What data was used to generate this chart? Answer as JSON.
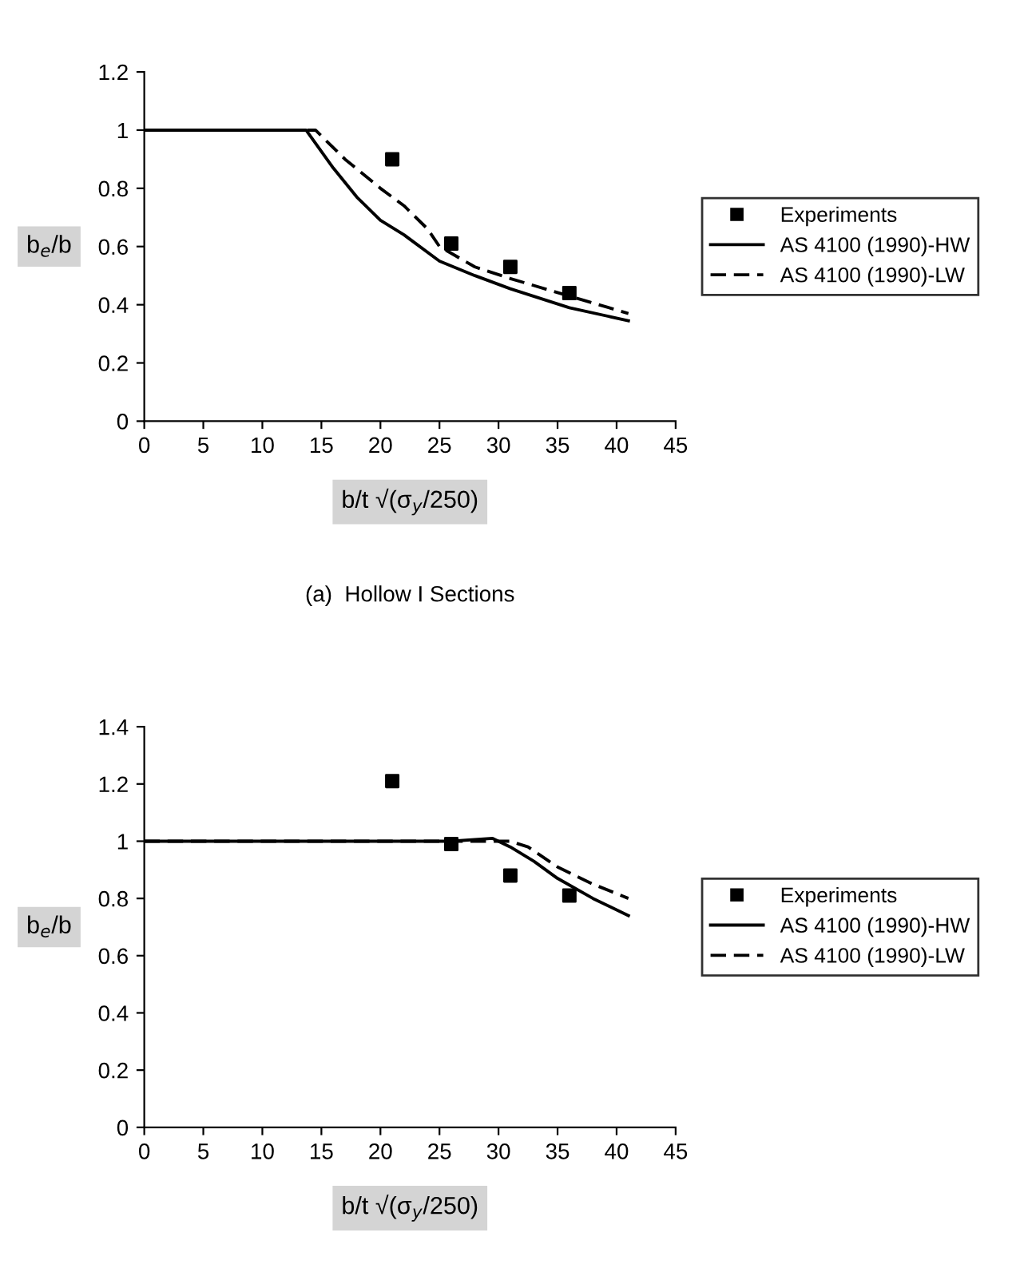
{
  "chart_data": [
    {
      "type": "line",
      "xlabel": "b/t √(σ$_{y}$/250)",
      "ylabel": "b$_{e}$/b",
      "annotations": [
        "(a)  Hollow I Sections"
      ],
      "xlim": [
        0,
        45
      ],
      "xticks": [
        0,
        5,
        10,
        15,
        20,
        25,
        30,
        35,
        40,
        45
      ],
      "ylim": [
        0,
        1.2
      ],
      "yticks": [
        0,
        0.2,
        0.4,
        0.6,
        0.8,
        1,
        1.2
      ],
      "grid": false,
      "legend": "right",
      "series": [
        {
          "name": "Experiments",
          "type": "scatter",
          "marker": "square",
          "color": "#000000",
          "x": [
            21,
            26,
            31,
            36
          ],
          "values": [
            0.9,
            0.61,
            0.53,
            0.44
          ]
        },
        {
          "name": "AS 4100 (1990)-HW",
          "type": "line",
          "marker": "none",
          "line_style": "solid",
          "color": "#000000",
          "x": [
            0,
            13.7,
            16,
            18,
            20,
            22,
            25,
            28,
            31,
            36,
            41
          ],
          "values": [
            1,
            1,
            0.87,
            0.77,
            0.69,
            0.64,
            0.55,
            0.5,
            0.455,
            0.39,
            0.345
          ]
        },
        {
          "name": "AS 4100 (1990)-LW",
          "type": "line",
          "marker": "none",
          "line_style": "dashed",
          "color": "#000000",
          "x": [
            0,
            14.5,
            17,
            20,
            22,
            24,
            25,
            28,
            31,
            36,
            41
          ],
          "values": [
            1,
            1,
            0.9,
            0.8,
            0.74,
            0.66,
            0.6,
            0.53,
            0.49,
            0.43,
            0.37
          ]
        }
      ]
    },
    {
      "type": "line",
      "xlabel": "b/t √(σ$_{y}$/250)",
      "ylabel": "b$_{e}$/b",
      "xlim": [
        0,
        45
      ],
      "xticks": [
        0,
        5,
        10,
        15,
        20,
        25,
        30,
        35,
        40,
        45
      ],
      "ylim": [
        0,
        1.4
      ],
      "yticks": [
        0,
        0.2,
        0.4,
        0.6,
        0.8,
        1,
        1.2,
        1.4
      ],
      "grid": false,
      "legend": "right",
      "series": [
        {
          "name": "Experiments",
          "type": "scatter",
          "marker": "square",
          "color": "#000000",
          "x": [
            21,
            26,
            31,
            36
          ],
          "values": [
            1.21,
            0.99,
            0.88,
            0.81
          ]
        },
        {
          "name": "AS 4100 (1990)-HW",
          "type": "line",
          "marker": "none",
          "line_style": "solid",
          "color": "#000000",
          "x": [
            0,
            26,
            29.5,
            31,
            33,
            35,
            38,
            41
          ],
          "values": [
            1,
            1,
            1.01,
            0.98,
            0.93,
            0.87,
            0.8,
            0.74
          ]
        },
        {
          "name": "AS 4100 (1990)-LW",
          "type": "line",
          "marker": "none",
          "line_style": "dashed",
          "color": "#000000",
          "x": [
            0,
            29,
            31,
            32.5,
            35,
            38,
            41
          ],
          "values": [
            1,
            1,
            1.0,
            0.98,
            0.91,
            0.85,
            0.8
          ]
        }
      ]
    }
  ]
}
